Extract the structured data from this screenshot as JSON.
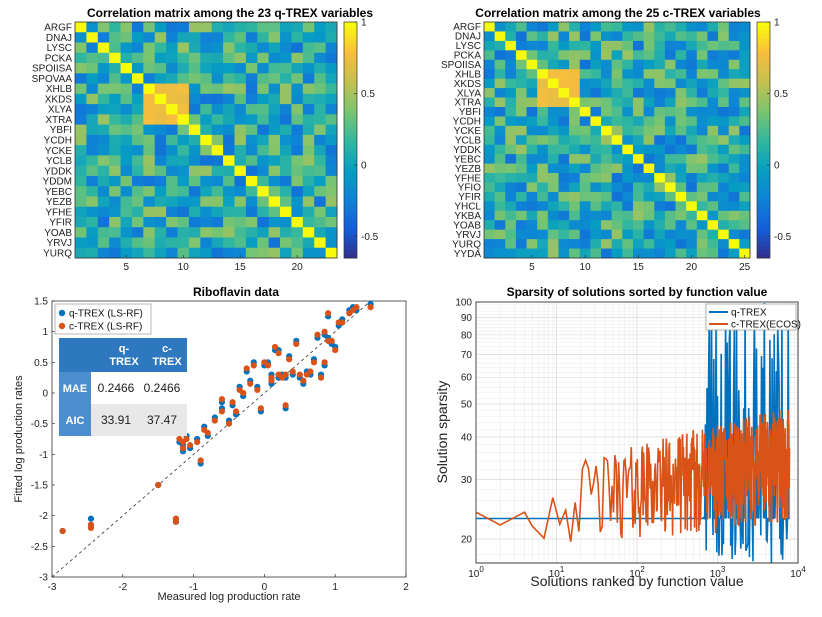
{
  "chart_data": [
    {
      "type": "heatmap",
      "title": "Correlation matrix among the 23 q-TREX variables",
      "row_labels": [
        "ARGF",
        "DNAJ",
        "LYSC",
        "PCKA",
        "SPOIISA",
        "SPOVAA",
        "XHLB",
        "XKDS",
        "XLYA",
        "XTRA",
        "YBFI",
        "YCDH",
        "YCKE",
        "YCLB",
        "YDDK",
        "YDDM",
        "YEBC",
        "YEZB",
        "YFHE",
        "YFIR",
        "YOAB",
        "YRVJ",
        "YURQ"
      ],
      "x_ticks": [
        5,
        10,
        15,
        20
      ],
      "colorbar_ticks": [
        1,
        0.5,
        0,
        -0.5
      ],
      "colorbar_tick_labels": [
        "1",
        "0.5",
        "0",
        "-0.5"
      ],
      "clim": [
        -0.65,
        1
      ],
      "seed": 7
    },
    {
      "type": "heatmap",
      "title": "Correlation matrix among the 25 c-TREX variables",
      "row_labels": [
        "ARGF",
        "DNAJ",
        "LYSC",
        "PCKA",
        "SPOIISA",
        "XHLB",
        "XKDS",
        "XLYA",
        "XTRA",
        "YBFI",
        "YCDH",
        "YCKE",
        "YCLB",
        "YDDK",
        "YEBC",
        "YEZB",
        "YFHE",
        "YFIO",
        "YFIR",
        "YHCL",
        "YKBA",
        "YOAB",
        "YRVJ",
        "YURQ",
        "YYDA"
      ],
      "x_ticks": [
        5,
        10,
        15,
        20,
        25
      ],
      "colorbar_ticks": [
        1,
        0.5,
        0,
        -0.5
      ],
      "colorbar_tick_labels": [
        "1",
        "0.5",
        "0",
        "-0.5"
      ],
      "clim": [
        -0.65,
        1
      ],
      "seed": 13
    },
    {
      "type": "scatter",
      "title": "Riboflavin data",
      "xlabel": "Measured log production rate",
      "ylabel": "Fitted log production rates",
      "xlim": [
        -3,
        2
      ],
      "ylim": [
        -3,
        1.5
      ],
      "x_ticks": [
        -3,
        -2,
        -1,
        0,
        1,
        2
      ],
      "y_ticks": [
        -3,
        -2.5,
        -2,
        -1.5,
        -1,
        -0.5,
        0,
        0.5,
        1,
        1.5
      ],
      "x_tick_labels": [
        "-3",
        "-2",
        "-1",
        "0",
        "1",
        "2"
      ],
      "y_tick_labels": [
        "-3",
        "-2.5",
        "-2",
        "-1.5",
        "-1",
        "-0.5",
        "0",
        "0.5",
        "1",
        "1.5"
      ],
      "series": [
        {
          "name": "q-TREX (LS-RF)",
          "color": "#0072BD",
          "x": [
            -2.85,
            -2.45,
            -2.45,
            -1.25,
            -1.25,
            -1.2,
            -1.15,
            -1.1,
            -1.05,
            -0.95,
            -0.9,
            -0.85,
            -0.8,
            -0.7,
            -0.6,
            -0.5,
            -0.45,
            -0.4,
            -0.35,
            -0.3,
            -0.25,
            -0.2,
            -0.15,
            -0.1,
            -0.05,
            0.0,
            0.05,
            0.1,
            0.15,
            0.2,
            0.25,
            0.3,
            0.35,
            0.4,
            0.45,
            0.5,
            0.55,
            0.6,
            0.65,
            0.7,
            0.75,
            0.8,
            0.85,
            0.9,
            0.95,
            1.0,
            1.05,
            1.1,
            1.2,
            1.25,
            1.3,
            1.5,
            -1.5,
            0.3,
            0.85,
            0.9,
            -1.15,
            -0.6,
            0.1,
            0.2
          ],
          "y": [
            -2.25,
            -2.05,
            -2.15,
            -2.05,
            -2.1,
            -0.8,
            -0.95,
            -0.7,
            -0.9,
            -0.75,
            -1.15,
            -0.55,
            -0.7,
            -0.4,
            -0.25,
            -0.45,
            -0.2,
            -0.35,
            0.1,
            -0.05,
            0.35,
            0.2,
            0.5,
            0.1,
            -0.3,
            0.45,
            0.5,
            0.3,
            0.7,
            0.25,
            0.3,
            0.25,
            0.6,
            0.3,
            0.85,
            0.25,
            0.15,
            0.35,
            0.3,
            0.55,
            0.9,
            0.3,
            0.95,
            0.9,
            0.8,
            0.75,
            1.1,
            1.2,
            1.35,
            1.4,
            1.35,
            1.45,
            -1.5,
            -0.25,
            0.45,
            1.25,
            -0.85,
            -0.15,
            0.15,
            0.7
          ]
        },
        {
          "name": "c-TREX (LS-RF)",
          "color": "#D95319",
          "x": [
            -2.85,
            -2.45,
            -2.45,
            -1.25,
            -1.25,
            -1.2,
            -1.15,
            -1.1,
            -1.05,
            -0.95,
            -0.9,
            -0.85,
            -0.8,
            -0.7,
            -0.6,
            -0.5,
            -0.45,
            -0.4,
            -0.35,
            -0.3,
            -0.25,
            -0.2,
            -0.15,
            -0.1,
            -0.05,
            0.0,
            0.05,
            0.1,
            0.15,
            0.2,
            0.25,
            0.3,
            0.35,
            0.4,
            0.45,
            0.5,
            0.55,
            0.6,
            0.65,
            0.7,
            0.75,
            0.8,
            0.85,
            0.9,
            0.95,
            1.0,
            1.05,
            1.1,
            1.2,
            1.25,
            1.3,
            1.5,
            -1.5,
            0.3,
            0.85,
            0.9,
            -1.15,
            -0.6,
            0.1,
            0.2
          ],
          "y": [
            -2.25,
            -2.15,
            -2.2,
            -2.1,
            -2.05,
            -0.75,
            -0.9,
            -0.75,
            -0.85,
            -0.8,
            -1.1,
            -0.6,
            -0.65,
            -0.45,
            -0.3,
            -0.5,
            -0.15,
            -0.3,
            0.05,
            0.0,
            0.4,
            0.15,
            0.45,
            0.05,
            -0.25,
            0.5,
            0.45,
            0.25,
            0.75,
            0.3,
            0.25,
            0.3,
            0.55,
            0.35,
            0.8,
            0.3,
            0.2,
            0.3,
            0.35,
            0.5,
            0.95,
            0.25,
            1.0,
            0.85,
            0.85,
            0.7,
            1.15,
            1.15,
            1.3,
            1.35,
            1.4,
            1.4,
            -1.5,
            -0.2,
            0.5,
            1.3,
            -0.8,
            -0.1,
            0.2,
            0.65
          ]
        }
      ],
      "reference_line": "y = x",
      "table": {
        "header": [
          "",
          "q-TREX",
          "c-TREX"
        ],
        "rows": [
          {
            "label": "MAE",
            "values": [
              "0.2466",
              "0.2466"
            ]
          },
          {
            "label": "AIC",
            "values": [
              "33.91",
              "37.47"
            ]
          }
        ]
      }
    },
    {
      "type": "line",
      "title": "Sparsity of solutions sorted by function value",
      "xlabel": "Solutions ranked by function value",
      "ylabel": "Solution sparsity",
      "xscale": "log",
      "yscale": "log",
      "xlim": [
        1,
        10000
      ],
      "ylim": [
        17,
        100
      ],
      "x_ticks": [
        1,
        10,
        100,
        1000,
        10000
      ],
      "y_ticks": [
        20,
        30,
        40,
        50,
        60,
        70,
        80,
        90,
        100
      ],
      "y_tick_labels": [
        "20",
        "30",
        "40",
        "50",
        "60",
        "70",
        "80",
        "90",
        "100"
      ],
      "series": [
        {
          "name": "q-TREX",
          "color": "#0072BD",
          "description": "flat at 23 until ~700 solutions, then spikes up to 100 and dips to 17"
        },
        {
          "name": "c-TREX(ECOS)",
          "color": "#D95319",
          "description": "starts near 24, oscillates widely, trending from ~22-28 up to ~30-45"
        }
      ],
      "legend_position": "top-right",
      "grid": true
    }
  ]
}
